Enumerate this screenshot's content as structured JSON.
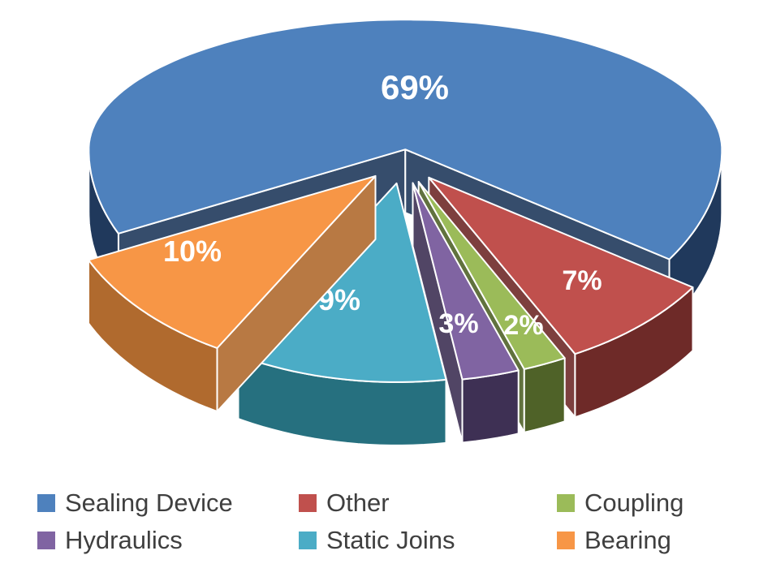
{
  "chart_data": {
    "type": "pie",
    "style": "3d-exploded",
    "title": "",
    "legend_position": "bottom",
    "legend_columns": 3,
    "background": "#FFFFFF",
    "label_color": "#FFFFFF",
    "legend_text_color": "#3F3F3F",
    "series": [
      {
        "label": "Sealing Device",
        "value": 69,
        "display": "69%",
        "color": "#4E81BD",
        "side_color": "#20395C"
      },
      {
        "label": "Other",
        "value": 7,
        "display": "7%",
        "color": "#C0504D",
        "side_color": "#6E2A28"
      },
      {
        "label": "Coupling",
        "value": 2,
        "display": "2%",
        "color": "#9BBB59",
        "side_color": "#4F6228"
      },
      {
        "label": "Hydraulics",
        "value": 3,
        "display": "3%",
        "color": "#8064A2",
        "side_color": "#3E3054"
      },
      {
        "label": "Static Joins",
        "value": 9,
        "display": "9%",
        "color": "#4BACC6",
        "side_color": "#26707F"
      },
      {
        "label": "Bearing",
        "value": 10,
        "display": "10%",
        "color": "#F79646",
        "side_color": "#B06A2E"
      }
    ]
  }
}
